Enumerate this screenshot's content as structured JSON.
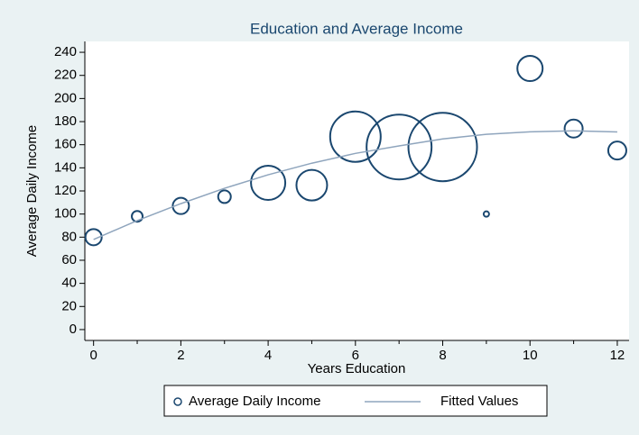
{
  "chart_data": {
    "type": "scatter",
    "title": "Education and Average Income",
    "x_label": "Years Education",
    "y_label": "Average Daily Income",
    "xlim": [
      -0.2,
      12.27
    ],
    "ylim": [
      -9.4,
      249.4
    ],
    "xticks": [
      0,
      2,
      4,
      6,
      8,
      10,
      12
    ],
    "x_minor_ticks": [
      1,
      3,
      5,
      7,
      9,
      11
    ],
    "yticks": [
      0,
      20,
      40,
      60,
      80,
      100,
      120,
      140,
      160,
      180,
      200,
      220,
      240
    ],
    "series": [
      {
        "name": "Average Daily Income",
        "type": "bubble",
        "color": "#1a476f",
        "x": [
          0,
          1,
          2,
          3,
          4,
          5,
          6,
          7,
          8,
          9,
          10,
          11,
          12
        ],
        "values": [
          80,
          98,
          107,
          115,
          127,
          125,
          167,
          158,
          158,
          100,
          226,
          174,
          155
        ],
        "sizes": [
          81,
          36,
          81,
          49,
          361,
          289,
          784,
          1296,
          1444,
          9,
          196,
          100,
          100
        ]
      },
      {
        "name": "Fitted Values",
        "type": "line",
        "color": "#8fa5bd",
        "x": [
          0,
          1,
          2,
          3,
          4,
          5,
          6,
          7,
          8,
          9,
          10,
          11,
          12
        ],
        "values": [
          78,
          94.3,
          109,
          122.3,
          134,
          144,
          152.5,
          159,
          165,
          169,
          171.2,
          172,
          171.1
        ]
      }
    ]
  }
}
